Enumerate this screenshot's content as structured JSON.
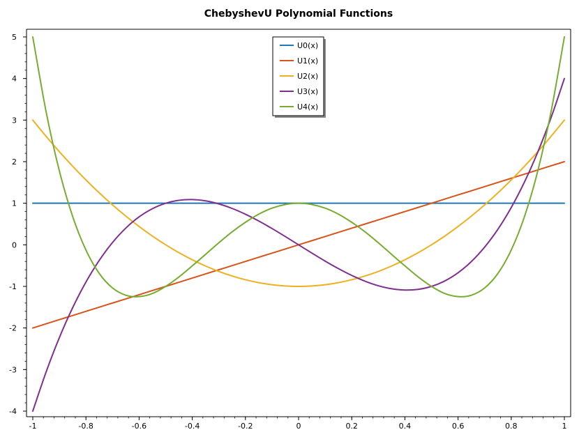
{
  "chart_data": {
    "type": "line",
    "title": "ChebyshevU Polynomial Functions",
    "xlabel": "",
    "ylabel": "",
    "xlim": [
      -1,
      1
    ],
    "ylim": [
      -4,
      5
    ],
    "x_ticks": [
      -1,
      -0.8,
      -0.6,
      -0.4,
      -0.2,
      0,
      0.2,
      0.4,
      0.6,
      0.8,
      1
    ],
    "x_tick_labels": [
      "-1",
      "-0.8",
      "-0.6",
      "-0.4",
      "-0.2",
      "0",
      "0.2",
      "0.4",
      "0.6",
      "0.8",
      "1"
    ],
    "y_ticks": [
      -4,
      -3,
      -2,
      -1,
      0,
      1,
      2,
      3,
      4,
      5
    ],
    "y_tick_labels": [
      "-4",
      "-3",
      "-2",
      "-1",
      "0",
      "1",
      "2",
      "3",
      "4",
      "5"
    ],
    "grid": false,
    "legend_position": "top-center",
    "x": [
      -1,
      -0.95,
      -0.9,
      -0.85,
      -0.8,
      -0.75,
      -0.7,
      -0.65,
      -0.6,
      -0.55,
      -0.5,
      -0.45,
      -0.4,
      -0.35,
      -0.3,
      -0.25,
      -0.2,
      -0.15,
      -0.1,
      -0.05,
      0,
      0.05,
      0.1,
      0.15,
      0.2,
      0.25,
      0.3,
      0.35,
      0.4,
      0.45,
      0.5,
      0.55,
      0.6,
      0.65,
      0.7,
      0.75,
      0.8,
      0.85,
      0.9,
      0.95,
      1
    ],
    "series": [
      {
        "name": "U0(x)",
        "color": "#1f77b4",
        "values": [
          1,
          1,
          1,
          1,
          1,
          1,
          1,
          1,
          1,
          1,
          1,
          1,
          1,
          1,
          1,
          1,
          1,
          1,
          1,
          1,
          1,
          1,
          1,
          1,
          1,
          1,
          1,
          1,
          1,
          1,
          1,
          1,
          1,
          1,
          1,
          1,
          1,
          1,
          1,
          1,
          1
        ]
      },
      {
        "name": "U1(x)",
        "color": "#d95319",
        "values": [
          -2,
          -1.9,
          -1.8,
          -1.7,
          -1.6,
          -1.5,
          -1.4,
          -1.3,
          -1.2,
          -1.1,
          -1,
          -0.9,
          -0.8,
          -0.7,
          -0.6,
          -0.5,
          -0.4,
          -0.3,
          -0.2,
          -0.1,
          0,
          0.1,
          0.2,
          0.3,
          0.4,
          0.5,
          0.6,
          0.7,
          0.8,
          0.9,
          1,
          1.1,
          1.2,
          1.3,
          1.4,
          1.5,
          1.6,
          1.7,
          1.8,
          1.9,
          2
        ]
      },
      {
        "name": "U2(x)",
        "color": "#edb120",
        "values": [
          3,
          2.61,
          2.24,
          1.89,
          1.56,
          1.25,
          0.96,
          0.69,
          0.44,
          0.21,
          0,
          -0.19,
          -0.36,
          -0.51,
          -0.64,
          -0.75,
          -0.84,
          -0.91,
          -0.96,
          -0.99,
          -1,
          -0.99,
          -0.96,
          -0.91,
          -0.84,
          -0.75,
          -0.64,
          -0.51,
          -0.36,
          -0.19,
          0,
          0.21,
          0.44,
          0.69,
          0.96,
          1.25,
          1.56,
          1.89,
          2.24,
          2.61,
          3
        ]
      },
      {
        "name": "U3(x)",
        "color": "#7e2f8e",
        "values": [
          -4,
          -3.06,
          -2.232,
          -1.513,
          -0.896,
          -0.375,
          0.056,
          0.403,
          0.672,
          0.869,
          1,
          1.071,
          1.088,
          1.057,
          0.984,
          0.875,
          0.736,
          0.573,
          0.392,
          0.199,
          0,
          -0.199,
          -0.392,
          -0.573,
          -0.736,
          -0.875,
          -0.984,
          -1.057,
          -1.088,
          -1.071,
          -1,
          -0.869,
          -0.672,
          -0.403,
          -0.056,
          0.375,
          0.896,
          1.513,
          2.232,
          3.06,
          4
        ]
      },
      {
        "name": "U4(x)",
        "color": "#77ac30",
        "values": [
          5,
          3.204,
          1.778,
          0.682,
          -0.126,
          -0.688,
          -1.038,
          -1.212,
          -1.246,
          -1.171,
          -1,
          -0.773,
          -0.506,
          -0.23,
          0.05,
          0.313,
          0.542,
          0.737,
          0.882,
          0.97,
          1,
          0.97,
          0.882,
          0.737,
          0.542,
          0.313,
          0.05,
          -0.23,
          -0.506,
          -0.773,
          -1,
          -1.171,
          -1.246,
          -1.212,
          -1.038,
          -0.688,
          -0.126,
          0.682,
          1.778,
          3.204,
          5
        ]
      }
    ]
  }
}
